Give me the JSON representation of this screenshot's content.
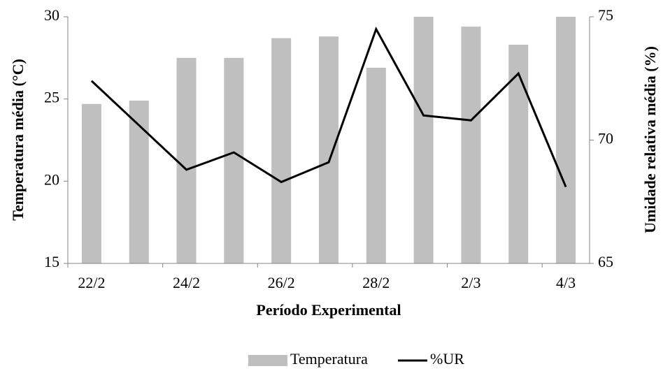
{
  "chart_data": {
    "type": "bar-line",
    "x_label": "Período Experimental",
    "y_label": "Temperatura média (°C)",
    "y2_label": "Umidade relativa média (%)",
    "categories": [
      "22/2",
      null,
      "24/2",
      null,
      "26/2",
      null,
      "28/2",
      null,
      "2/3",
      null,
      "4/3"
    ],
    "series": [
      {
        "name": "Temperatura",
        "type": "bar",
        "color": "#bfbfbf",
        "values": [
          24.7,
          24.9,
          27.5,
          27.5,
          28.7,
          28.8,
          26.9,
          30,
          29.4,
          28.3,
          30
        ]
      },
      {
        "name": "%UR",
        "type": "line",
        "axis": "y2",
        "color": "#000000",
        "values": [
          72.4,
          70.6,
          68.8,
          69.5,
          68.3,
          69.1,
          74.5,
          71.0,
          70.8,
          72.7,
          68.1
        ]
      }
    ],
    "ylim": [
      15,
      30
    ],
    "yticks": [
      15,
      20,
      25,
      30
    ],
    "y2lim": [
      65,
      75
    ],
    "y2ticks": [
      65,
      70,
      75
    ],
    "legend": "bottom",
    "grid": false
  }
}
